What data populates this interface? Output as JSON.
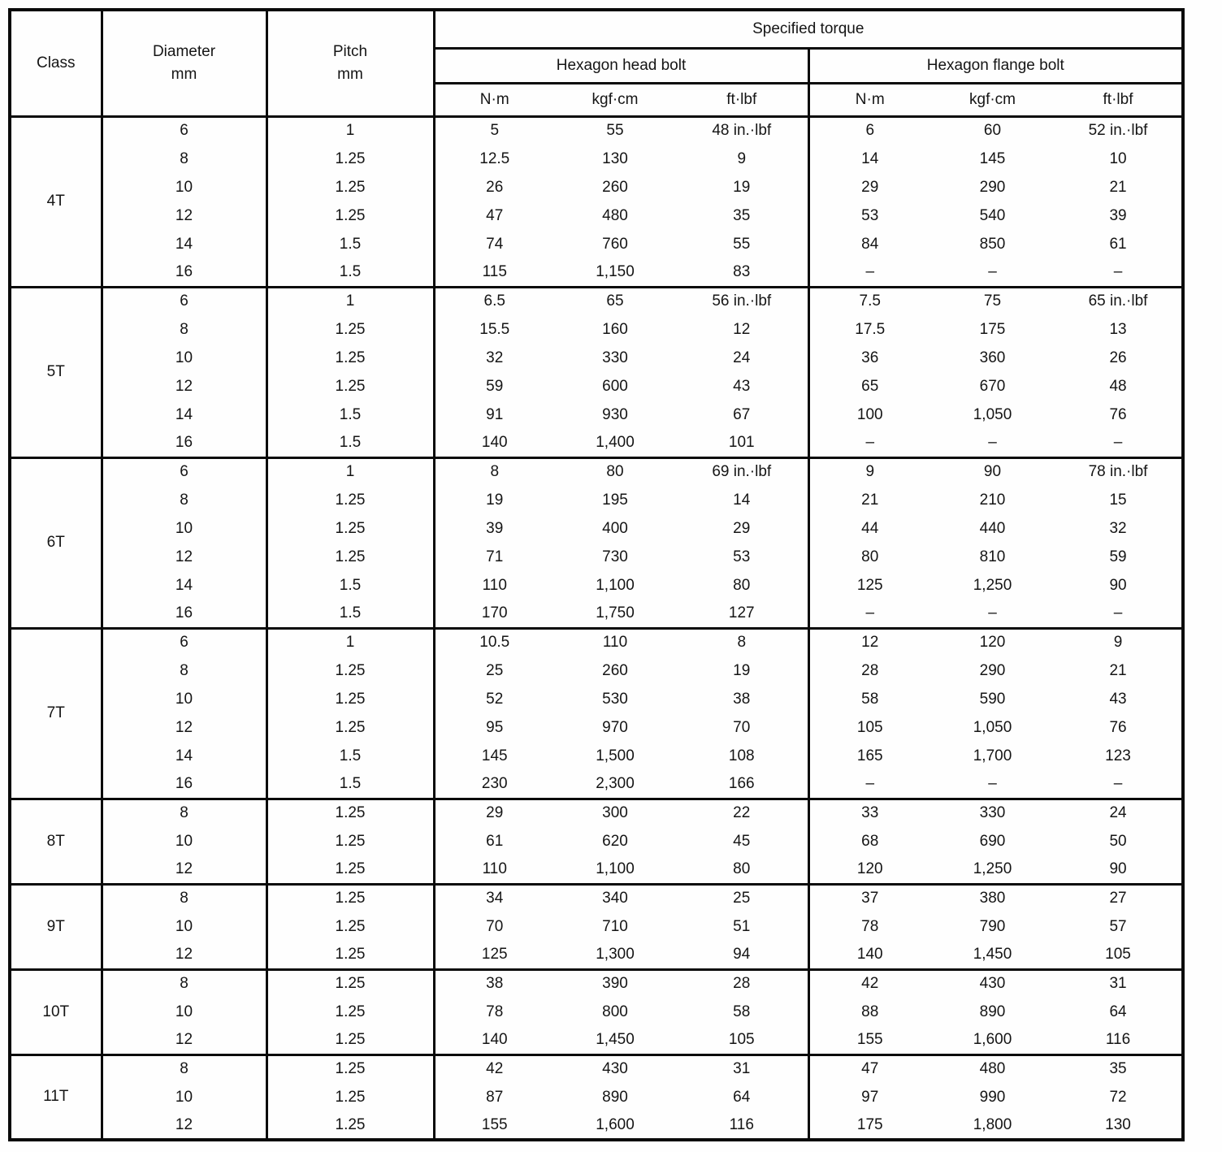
{
  "table": {
    "headers": {
      "class": "Class",
      "diameter": "Diameter",
      "pitch": "Pitch",
      "unit_mm": "mm",
      "specified_torque": "Specified torque",
      "head_bolt": "Hexagon head bolt",
      "flange_bolt": "Hexagon flange bolt",
      "units": [
        "N·m",
        "kgf·cm",
        "ft·lbf"
      ]
    },
    "sections": [
      {
        "class": "4T",
        "rows": [
          [
            "6",
            "1",
            "5",
            "55",
            "48 in.·lbf",
            "6",
            "60",
            "52 in.·lbf"
          ],
          [
            "8",
            "1.25",
            "12.5",
            "130",
            "9",
            "14",
            "145",
            "10"
          ],
          [
            "10",
            "1.25",
            "26",
            "260",
            "19",
            "29",
            "290",
            "21"
          ],
          [
            "12",
            "1.25",
            "47",
            "480",
            "35",
            "53",
            "540",
            "39"
          ],
          [
            "14",
            "1.5",
            "74",
            "760",
            "55",
            "84",
            "850",
            "61"
          ],
          [
            "16",
            "1.5",
            "115",
            "1,150",
            "83",
            "–",
            "–",
            "–"
          ]
        ]
      },
      {
        "class": "5T",
        "rows": [
          [
            "6",
            "1",
            "6.5",
            "65",
            "56 in.·lbf",
            "7.5",
            "75",
            "65 in.·lbf"
          ],
          [
            "8",
            "1.25",
            "15.5",
            "160",
            "12",
            "17.5",
            "175",
            "13"
          ],
          [
            "10",
            "1.25",
            "32",
            "330",
            "24",
            "36",
            "360",
            "26"
          ],
          [
            "12",
            "1.25",
            "59",
            "600",
            "43",
            "65",
            "670",
            "48"
          ],
          [
            "14",
            "1.5",
            "91",
            "930",
            "67",
            "100",
            "1,050",
            "76"
          ],
          [
            "16",
            "1.5",
            "140",
            "1,400",
            "101",
            "–",
            "–",
            "–"
          ]
        ]
      },
      {
        "class": "6T",
        "rows": [
          [
            "6",
            "1",
            "8",
            "80",
            "69 in.·lbf",
            "9",
            "90",
            "78 in.·lbf"
          ],
          [
            "8",
            "1.25",
            "19",
            "195",
            "14",
            "21",
            "210",
            "15"
          ],
          [
            "10",
            "1.25",
            "39",
            "400",
            "29",
            "44",
            "440",
            "32"
          ],
          [
            "12",
            "1.25",
            "71",
            "730",
            "53",
            "80",
            "810",
            "59"
          ],
          [
            "14",
            "1.5",
            "110",
            "1,100",
            "80",
            "125",
            "1,250",
            "90"
          ],
          [
            "16",
            "1.5",
            "170",
            "1,750",
            "127",
            "–",
            "–",
            "–"
          ]
        ]
      },
      {
        "class": "7T",
        "rows": [
          [
            "6",
            "1",
            "10.5",
            "110",
            "8",
            "12",
            "120",
            "9"
          ],
          [
            "8",
            "1.25",
            "25",
            "260",
            "19",
            "28",
            "290",
            "21"
          ],
          [
            "10",
            "1.25",
            "52",
            "530",
            "38",
            "58",
            "590",
            "43"
          ],
          [
            "12",
            "1.25",
            "95",
            "970",
            "70",
            "105",
            "1,050",
            "76"
          ],
          [
            "14",
            "1.5",
            "145",
            "1,500",
            "108",
            "165",
            "1,700",
            "123"
          ],
          [
            "16",
            "1.5",
            "230",
            "2,300",
            "166",
            "–",
            "–",
            "–"
          ]
        ]
      },
      {
        "class": "8T",
        "rows": [
          [
            "8",
            "1.25",
            "29",
            "300",
            "22",
            "33",
            "330",
            "24"
          ],
          [
            "10",
            "1.25",
            "61",
            "620",
            "45",
            "68",
            "690",
            "50"
          ],
          [
            "12",
            "1.25",
            "110",
            "1,100",
            "80",
            "120",
            "1,250",
            "90"
          ]
        ]
      },
      {
        "class": "9T",
        "rows": [
          [
            "8",
            "1.25",
            "34",
            "340",
            "25",
            "37",
            "380",
            "27"
          ],
          [
            "10",
            "1.25",
            "70",
            "710",
            "51",
            "78",
            "790",
            "57"
          ],
          [
            "12",
            "1.25",
            "125",
            "1,300",
            "94",
            "140",
            "1,450",
            "105"
          ]
        ]
      },
      {
        "class": "10T",
        "rows": [
          [
            "8",
            "1.25",
            "38",
            "390",
            "28",
            "42",
            "430",
            "31"
          ],
          [
            "10",
            "1.25",
            "78",
            "800",
            "58",
            "88",
            "890",
            "64"
          ],
          [
            "12",
            "1.25",
            "140",
            "1,450",
            "105",
            "155",
            "1,600",
            "116"
          ]
        ]
      },
      {
        "class": "11T",
        "rows": [
          [
            "8",
            "1.25",
            "42",
            "430",
            "31",
            "47",
            "480",
            "35"
          ],
          [
            "10",
            "1.25",
            "87",
            "890",
            "64",
            "97",
            "990",
            "72"
          ],
          [
            "12",
            "1.25",
            "155",
            "1,600",
            "116",
            "175",
            "1,800",
            "130"
          ]
        ]
      }
    ]
  }
}
